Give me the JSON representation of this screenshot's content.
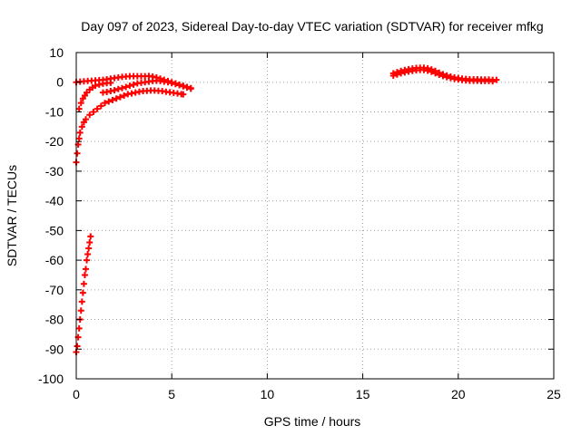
{
  "chart_data": {
    "type": "scatter",
    "title": "Day 097 of 2023, Sidereal Day-to-day VTEC variation (SDTVAR) for receiver mfkg",
    "xlabel": "GPS time / hours",
    "ylabel": "SDTVAR / TECUs",
    "xlim": [
      0,
      25
    ],
    "ylim": [
      -100,
      10
    ],
    "xticks": [
      0,
      5,
      10,
      15,
      20,
      25
    ],
    "yticks": [
      10,
      0,
      -10,
      -20,
      -30,
      -40,
      -50,
      -60,
      -70,
      -80,
      -90,
      -100
    ],
    "grid": true,
    "marker": "+",
    "color": "#ff0000",
    "series": [
      {
        "values": [
          {
            "x": 0.0,
            "y": -91
          },
          {
            "x": 0.05,
            "y": -89
          },
          {
            "x": 0.1,
            "y": -86
          },
          {
            "x": 0.15,
            "y": -83
          },
          {
            "x": 0.2,
            "y": -80
          },
          {
            "x": 0.25,
            "y": -77
          },
          {
            "x": 0.3,
            "y": -74
          },
          {
            "x": 0.35,
            "y": -71
          },
          {
            "x": 0.4,
            "y": -68
          },
          {
            "x": 0.45,
            "y": -65
          },
          {
            "x": 0.5,
            "y": -63
          },
          {
            "x": 0.55,
            "y": -60
          },
          {
            "x": 0.6,
            "y": -58
          },
          {
            "x": 0.65,
            "y": -56
          },
          {
            "x": 0.7,
            "y": -54
          },
          {
            "x": 0.75,
            "y": -52
          }
        ]
      },
      {
        "values": [
          {
            "x": 0.0,
            "y": -27
          },
          {
            "x": 0.05,
            "y": -24
          },
          {
            "x": 0.1,
            "y": -21
          },
          {
            "x": 0.15,
            "y": -19
          },
          {
            "x": 0.2,
            "y": -17
          },
          {
            "x": 0.3,
            "y": -15
          },
          {
            "x": 0.4,
            "y": -13.5
          },
          {
            "x": 0.5,
            "y": -12.5
          },
          {
            "x": 0.7,
            "y": -11
          },
          {
            "x": 0.9,
            "y": -10
          },
          {
            "x": 1.1,
            "y": -9
          },
          {
            "x": 1.3,
            "y": -8
          },
          {
            "x": 1.5,
            "y": -7
          },
          {
            "x": 1.7,
            "y": -6.5
          },
          {
            "x": 1.9,
            "y": -6
          },
          {
            "x": 2.1,
            "y": -5.5
          },
          {
            "x": 2.3,
            "y": -5
          },
          {
            "x": 2.5,
            "y": -4.5
          },
          {
            "x": 2.7,
            "y": -4
          },
          {
            "x": 2.9,
            "y": -3.8
          },
          {
            "x": 3.1,
            "y": -3.5
          },
          {
            "x": 3.3,
            "y": -3.2
          },
          {
            "x": 3.5,
            "y": -3
          },
          {
            "x": 3.7,
            "y": -2.9
          },
          {
            "x": 3.9,
            "y": -2.8
          },
          {
            "x": 4.1,
            "y": -2.8
          },
          {
            "x": 4.3,
            "y": -2.9
          },
          {
            "x": 4.5,
            "y": -3
          },
          {
            "x": 4.7,
            "y": -3.2
          },
          {
            "x": 4.9,
            "y": -3.4
          },
          {
            "x": 5.1,
            "y": -3.6
          },
          {
            "x": 5.3,
            "y": -3.8
          },
          {
            "x": 5.5,
            "y": -4
          },
          {
            "x": 5.6,
            "y": -4.1
          }
        ]
      },
      {
        "values": [
          {
            "x": 0.15,
            "y": -9
          },
          {
            "x": 0.25,
            "y": -7
          },
          {
            "x": 0.35,
            "y": -5.5
          },
          {
            "x": 0.45,
            "y": -4.5
          },
          {
            "x": 0.55,
            "y": -3.5
          },
          {
            "x": 0.7,
            "y": -2.5
          },
          {
            "x": 0.85,
            "y": -1.8
          },
          {
            "x": 1.0,
            "y": -1.2
          },
          {
            "x": 1.2,
            "y": -0.8
          },
          {
            "x": 1.4,
            "y": -0.5
          },
          {
            "x": 1.6,
            "y": -0.3
          },
          {
            "x": 1.8,
            "y": -0.2
          }
        ]
      },
      {
        "values": [
          {
            "x": 0.0,
            "y": 0
          },
          {
            "x": 0.2,
            "y": 0.2
          },
          {
            "x": 0.4,
            "y": 0.3
          },
          {
            "x": 0.6,
            "y": 0.4
          },
          {
            "x": 0.8,
            "y": 0.5
          },
          {
            "x": 1.0,
            "y": 0.6
          },
          {
            "x": 1.2,
            "y": 0.7
          },
          {
            "x": 1.4,
            "y": 0.8
          },
          {
            "x": 1.6,
            "y": 1.0
          },
          {
            "x": 1.8,
            "y": 1.2
          },
          {
            "x": 2.0,
            "y": 1.4
          },
          {
            "x": 2.2,
            "y": 1.6
          },
          {
            "x": 2.4,
            "y": 1.8
          },
          {
            "x": 2.6,
            "y": 1.9
          },
          {
            "x": 2.8,
            "y": 2.0
          },
          {
            "x": 3.0,
            "y": 2.0
          },
          {
            "x": 3.2,
            "y": 2.0
          },
          {
            "x": 3.4,
            "y": 2.0
          },
          {
            "x": 3.6,
            "y": 2.0
          },
          {
            "x": 3.8,
            "y": 2.1
          },
          {
            "x": 4.0,
            "y": 1.9
          },
          {
            "x": 4.2,
            "y": 1.6
          },
          {
            "x": 4.4,
            "y": 1.2
          },
          {
            "x": 4.6,
            "y": 0.8
          },
          {
            "x": 4.8,
            "y": 0.4
          },
          {
            "x": 5.0,
            "y": 0.0
          },
          {
            "x": 5.2,
            "y": -0.4
          },
          {
            "x": 5.4,
            "y": -0.8
          },
          {
            "x": 5.6,
            "y": -1.2
          },
          {
            "x": 5.8,
            "y": -1.6
          },
          {
            "x": 6.0,
            "y": -2.0
          }
        ]
      },
      {
        "values": [
          {
            "x": 1.4,
            "y": -3.5
          },
          {
            "x": 1.6,
            "y": -3.3
          },
          {
            "x": 1.8,
            "y": -3.0
          },
          {
            "x": 2.0,
            "y": -2.7
          },
          {
            "x": 2.2,
            "y": -2.3
          },
          {
            "x": 2.4,
            "y": -2.0
          },
          {
            "x": 2.6,
            "y": -1.6
          },
          {
            "x": 2.8,
            "y": -1.2
          },
          {
            "x": 3.0,
            "y": -0.8
          },
          {
            "x": 3.2,
            "y": -0.4
          },
          {
            "x": 3.4,
            "y": -0.2
          },
          {
            "x": 3.6,
            "y": 0.0
          },
          {
            "x": 3.8,
            "y": 0.2
          },
          {
            "x": 4.0,
            "y": 0.4
          },
          {
            "x": 4.2,
            "y": 0.5
          },
          {
            "x": 4.4,
            "y": 0.4
          },
          {
            "x": 4.6,
            "y": 0.2
          },
          {
            "x": 4.8,
            "y": 0.0
          },
          {
            "x": 5.0,
            "y": -0.3
          },
          {
            "x": 5.2,
            "y": -0.6
          },
          {
            "x": 5.4,
            "y": -1.0
          },
          {
            "x": 5.6,
            "y": -1.4
          },
          {
            "x": 5.8,
            "y": -1.8
          },
          {
            "x": 6.0,
            "y": -2.2
          }
        ]
      },
      {
        "values": [
          {
            "x": 16.6,
            "y": 3.0
          },
          {
            "x": 16.8,
            "y": 3.4
          },
          {
            "x": 17.0,
            "y": 3.8
          },
          {
            "x": 17.2,
            "y": 4.1
          },
          {
            "x": 17.4,
            "y": 4.4
          },
          {
            "x": 17.6,
            "y": 4.6
          },
          {
            "x": 17.8,
            "y": 4.8
          },
          {
            "x": 18.0,
            "y": 4.9
          },
          {
            "x": 18.2,
            "y": 4.9
          },
          {
            "x": 18.4,
            "y": 4.7
          },
          {
            "x": 18.6,
            "y": 4.3
          },
          {
            "x": 18.8,
            "y": 3.8
          },
          {
            "x": 19.0,
            "y": 3.2
          },
          {
            "x": 19.2,
            "y": 2.7
          },
          {
            "x": 19.4,
            "y": 2.3
          },
          {
            "x": 19.6,
            "y": 1.9
          },
          {
            "x": 19.8,
            "y": 1.6
          },
          {
            "x": 20.0,
            "y": 1.4
          },
          {
            "x": 20.2,
            "y": 1.2
          },
          {
            "x": 20.4,
            "y": 1.1
          },
          {
            "x": 20.6,
            "y": 1.0
          },
          {
            "x": 20.8,
            "y": 1.0
          },
          {
            "x": 21.0,
            "y": 1.0
          },
          {
            "x": 21.2,
            "y": 0.9
          },
          {
            "x": 21.4,
            "y": 0.9
          },
          {
            "x": 21.6,
            "y": 0.9
          },
          {
            "x": 21.8,
            "y": 0.8
          },
          {
            "x": 22.0,
            "y": 0.8
          }
        ]
      },
      {
        "values": [
          {
            "x": 16.6,
            "y": 2.2
          },
          {
            "x": 16.8,
            "y": 2.6
          },
          {
            "x": 17.0,
            "y": 3.0
          },
          {
            "x": 17.2,
            "y": 3.3
          },
          {
            "x": 17.4,
            "y": 3.6
          },
          {
            "x": 17.6,
            "y": 3.8
          },
          {
            "x": 17.8,
            "y": 4.0
          },
          {
            "x": 18.0,
            "y": 4.1
          },
          {
            "x": 18.2,
            "y": 4.1
          },
          {
            "x": 18.4,
            "y": 3.9
          },
          {
            "x": 18.6,
            "y": 3.5
          },
          {
            "x": 18.8,
            "y": 3.0
          },
          {
            "x": 19.0,
            "y": 2.5
          },
          {
            "x": 19.2,
            "y": 2.1
          },
          {
            "x": 19.4,
            "y": 1.7
          },
          {
            "x": 19.6,
            "y": 1.4
          },
          {
            "x": 19.8,
            "y": 1.1
          },
          {
            "x": 20.0,
            "y": 0.9
          },
          {
            "x": 20.2,
            "y": 0.7
          },
          {
            "x": 20.4,
            "y": 0.6
          },
          {
            "x": 20.6,
            "y": 0.5
          },
          {
            "x": 20.8,
            "y": 0.5
          },
          {
            "x": 21.0,
            "y": 0.5
          },
          {
            "x": 21.2,
            "y": 0.4
          },
          {
            "x": 21.4,
            "y": 0.4
          },
          {
            "x": 21.6,
            "y": 0.4
          },
          {
            "x": 21.8,
            "y": 0.3
          }
        ]
      }
    ]
  }
}
